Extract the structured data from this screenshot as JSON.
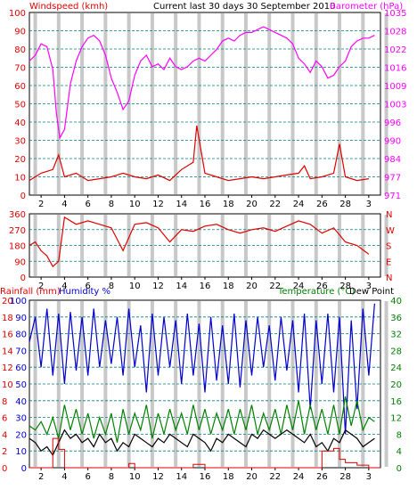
{
  "header": {
    "left_title": "Windspeed (kmh)",
    "center_title": "Current last 30 days 30 September 2010",
    "right_title": "Barometer (hPa)"
  },
  "bottom_header": {
    "rain_label": "Rainfall (mm)",
    "humidity_label": "Humidity %",
    "temp_label": "Temperature (°C)",
    "dew_label": "Dew Point"
  },
  "colors": {
    "wind": "#e00000",
    "gust_alt_blue": "#0000cc",
    "gust_alt_green": "#008000",
    "baro": "#ff00ff",
    "humidity": "#0000cc",
    "temp": "#008000",
    "dew": "#000000",
    "rain": "#e00000",
    "grid": "#008080",
    "dayband": "#c8c8c8"
  },
  "chart_data": [
    {
      "type": "line",
      "title": "Windspeed (kmh) / Barometer (hPa)",
      "x_ticks": [
        "2",
        "4",
        "6",
        "8",
        "10",
        "12",
        "14",
        "16",
        "18",
        "20",
        "22",
        "24",
        "26",
        "28",
        "3"
      ],
      "xlim": [
        1,
        31
      ],
      "y_left": {
        "label": "Windspeed (kmh)",
        "ticks": [
          "0",
          "10",
          "20",
          "30",
          "40",
          "50",
          "60",
          "70",
          "80",
          "90",
          "100"
        ],
        "ylim": [
          0,
          100
        ]
      },
      "y_right": {
        "label": "Barometer (hPa)",
        "ticks": [
          "971",
          "977",
          "984",
          "990",
          "996",
          "1003",
          "1009",
          "1016",
          "1022",
          "1028",
          "1035"
        ],
        "ylim": [
          971,
          1035
        ]
      },
      "series": [
        {
          "name": "Barometer (hPa)",
          "axis": "right",
          "x": [
            1,
            1.5,
            2,
            2.5,
            3,
            3.3,
            3.6,
            4,
            4.5,
            5,
            5.5,
            6,
            6.5,
            7,
            7.5,
            8,
            8.5,
            9,
            9.5,
            10,
            10.5,
            11,
            11.5,
            12,
            12.5,
            13,
            13.5,
            14,
            14.5,
            15,
            15.5,
            16,
            16.5,
            17,
            17.5,
            18,
            18.5,
            19,
            19.5,
            20,
            20.5,
            21,
            21.5,
            22,
            22.5,
            23,
            23.5,
            24,
            24.5,
            25,
            25.5,
            26,
            26.5,
            27,
            27.5,
            28,
            28.5,
            29,
            29.5,
            30,
            30.5
          ],
          "values": [
            1018,
            1020,
            1024,
            1023,
            1015,
            1000,
            991,
            994,
            1010,
            1018,
            1023,
            1026,
            1027,
            1025,
            1020,
            1012,
            1007,
            1001,
            1004,
            1013,
            1018,
            1020,
            1016,
            1017,
            1015,
            1019,
            1016,
            1015,
            1016,
            1018,
            1019,
            1018,
            1020,
            1022,
            1025,
            1026,
            1025,
            1027,
            1028,
            1028,
            1029,
            1030,
            1029,
            1028,
            1027,
            1026,
            1024,
            1019,
            1017,
            1014,
            1018,
            1016,
            1012,
            1013,
            1016,
            1018,
            1023,
            1025,
            1026,
            1026,
            1027
          ]
        },
        {
          "name": "Windspeed (kmh)",
          "axis": "left",
          "x": [
            1,
            2,
            3,
            3.5,
            4,
            5,
            6,
            7,
            8,
            9,
            10,
            11,
            12,
            13,
            14,
            15,
            15.3,
            16,
            17,
            18,
            19,
            20,
            21,
            22,
            23,
            24,
            24.5,
            25,
            26,
            26.5,
            27,
            27.5,
            28,
            29,
            30
          ],
          "values": [
            8,
            12,
            14,
            22,
            10,
            12,
            8,
            9,
            10,
            12,
            10,
            9,
            11,
            8,
            14,
            18,
            38,
            12,
            10,
            8,
            9,
            10,
            9,
            10,
            11,
            12,
            16,
            9,
            10,
            11,
            12,
            28,
            10,
            8,
            9
          ]
        }
      ]
    },
    {
      "type": "scatter",
      "title": "Wind direction",
      "x_ticks": [
        "2",
        "4",
        "6",
        "8",
        "10",
        "12",
        "14",
        "16",
        "18",
        "20",
        "22",
        "24",
        "26",
        "28",
        "3"
      ],
      "xlim": [
        1,
        31
      ],
      "y_left": {
        "ticks": [
          "0",
          "90",
          "180",
          "270",
          "360"
        ],
        "ylim": [
          0,
          360
        ]
      },
      "y_right": {
        "ticks": [
          "N",
          "E",
          "S",
          "W",
          "N"
        ]
      },
      "series": [
        {
          "name": "Direction",
          "x": [
            1,
            1.5,
            2,
            2.5,
            3,
            3.5,
            4,
            5,
            6,
            7,
            8,
            9,
            10,
            11,
            12,
            13,
            14,
            15,
            16,
            17,
            18,
            19,
            20,
            21,
            22,
            23,
            24,
            25,
            26,
            27,
            28,
            29,
            30
          ],
          "values": [
            180,
            200,
            150,
            120,
            60,
            90,
            340,
            300,
            320,
            300,
            280,
            150,
            300,
            310,
            280,
            200,
            270,
            260,
            290,
            300,
            270,
            250,
            270,
            280,
            260,
            290,
            320,
            300,
            250,
            280,
            200,
            180,
            130
          ]
        }
      ]
    },
    {
      "type": "line",
      "title": "Rainfall (mm) / Humidity % / Temperature (°C) / Dew Point",
      "x_ticks": [
        "2",
        "4",
        "6",
        "8",
        "10",
        "12",
        "14",
        "16",
        "18",
        "20",
        "22",
        "24",
        "26",
        "28",
        "3"
      ],
      "xlim": [
        1,
        31
      ],
      "y_left_rain": {
        "label": "Rainfall (mm)",
        "ticks": [
          "0",
          "2",
          "4",
          "6",
          "8",
          "10",
          "12",
          "14",
          "16",
          "18",
          "20"
        ],
        "ylim": [
          0,
          20
        ]
      },
      "y_left_hum": {
        "label": "Humidity %",
        "ticks": [
          "0",
          "10",
          "20",
          "30",
          "40",
          "50",
          "60",
          "70",
          "80",
          "90",
          "100"
        ],
        "ylim": [
          0,
          100
        ]
      },
      "y_right": {
        "label": "Temperature (°C)",
        "ticks": [
          "0",
          "4",
          "8",
          "12",
          "16",
          "20",
          "24",
          "28",
          "32",
          "36",
          "40"
        ],
        "ylim": [
          0,
          40
        ]
      },
      "series": [
        {
          "name": "Humidity %",
          "axis": "hum",
          "x": [
            1,
            1.5,
            2,
            2.5,
            3,
            3.5,
            4,
            4.5,
            5,
            5.5,
            6,
            6.5,
            7,
            7.5,
            8,
            8.5,
            9,
            9.5,
            10,
            10.5,
            11,
            11.5,
            12,
            12.5,
            13,
            13.5,
            14,
            14.5,
            15,
            15.5,
            16,
            16.5,
            17,
            17.5,
            18,
            18.5,
            19,
            19.5,
            20,
            20.5,
            21,
            21.5,
            22,
            22.5,
            23,
            23.5,
            24,
            24.5,
            25,
            25.5,
            26,
            26.5,
            27,
            27.5,
            28,
            28.5,
            29,
            29.5,
            30,
            30.5
          ],
          "values": [
            75,
            90,
            60,
            95,
            55,
            92,
            50,
            93,
            58,
            90,
            55,
            95,
            60,
            88,
            62,
            90,
            55,
            95,
            60,
            85,
            45,
            92,
            55,
            90,
            60,
            88,
            50,
            92,
            55,
            86,
            45,
            90,
            52,
            85,
            50,
            92,
            48,
            88,
            55,
            90,
            60,
            85,
            52,
            90,
            58,
            88,
            45,
            92,
            35,
            88,
            50,
            92,
            45,
            90,
            20,
            88,
            35,
            95,
            55,
            98
          ]
        },
        {
          "name": "Temperature (°C)",
          "axis": "right",
          "x": [
            1,
            1.5,
            2,
            2.5,
            3,
            3.5,
            4,
            4.5,
            5,
            5.5,
            6,
            6.5,
            7,
            7.5,
            8,
            8.5,
            9,
            9.5,
            10,
            10.5,
            11,
            11.5,
            12,
            12.5,
            13,
            13.5,
            14,
            14.5,
            15,
            15.5,
            16,
            16.5,
            17,
            17.5,
            18,
            18.5,
            19,
            19.5,
            20,
            20.5,
            21,
            21.5,
            22,
            22.5,
            23,
            23.5,
            24,
            24.5,
            25,
            25.5,
            26,
            26.5,
            27,
            27.5,
            28,
            28.5,
            29,
            29.5,
            30,
            30.5
          ],
          "values": [
            10,
            9,
            11,
            8,
            12,
            7,
            15,
            9,
            14,
            8,
            13,
            7,
            12,
            8,
            13,
            6,
            14,
            8,
            13,
            9,
            15,
            7,
            13,
            8,
            14,
            9,
            13,
            8,
            15,
            9,
            14,
            8,
            13,
            9,
            14,
            8,
            14,
            9,
            15,
            8,
            13,
            9,
            14,
            8,
            15,
            9,
            16,
            8,
            15,
            9,
            14,
            8,
            15,
            8,
            17,
            10,
            16,
            9,
            12,
            11
          ]
        },
        {
          "name": "Dew Point",
          "axis": "right",
          "x": [
            1,
            1.5,
            2,
            2.5,
            3,
            3.5,
            4,
            4.5,
            5,
            5.5,
            6,
            6.5,
            7,
            7.5,
            8,
            8.5,
            9,
            9.5,
            10,
            10.5,
            11,
            11.5,
            12,
            12.5,
            13,
            13.5,
            14,
            14.5,
            15,
            15.5,
            16,
            16.5,
            17,
            17.5,
            18,
            18.5,
            19,
            19.5,
            20,
            20.5,
            21,
            21.5,
            22,
            22.5,
            23,
            23.5,
            24,
            24.5,
            25,
            25.5,
            26,
            26.5,
            27,
            27.5,
            28,
            28.5,
            29,
            29.5,
            30,
            30.5
          ],
          "values": [
            7,
            6,
            4,
            5,
            3,
            6,
            9,
            7,
            8,
            6,
            7,
            5,
            8,
            6,
            7,
            4,
            6,
            5,
            8,
            7,
            6,
            5,
            7,
            6,
            8,
            7,
            6,
            5,
            8,
            7,
            6,
            4,
            7,
            6,
            8,
            7,
            6,
            5,
            8,
            7,
            9,
            8,
            7,
            8,
            9,
            8,
            7,
            6,
            8,
            5,
            6,
            4,
            7,
            6,
            9,
            8,
            7,
            5,
            6,
            7
          ]
        },
        {
          "name": "Rainfall (mm)",
          "axis": "rain",
          "step": true,
          "x": [
            1,
            2,
            2.8,
            3,
            3.5,
            4,
            5,
            9,
            9.5,
            10,
            14,
            15,
            16,
            18,
            25,
            26,
            27,
            27.5,
            28,
            29,
            30,
            31
          ],
          "values": [
            0,
            0,
            0,
            3.5,
            2.2,
            0,
            0,
            0,
            0.5,
            0,
            0,
            0.4,
            0,
            0,
            0,
            2.0,
            2.3,
            1.0,
            0.6,
            0.3,
            0,
            0
          ]
        }
      ]
    }
  ]
}
